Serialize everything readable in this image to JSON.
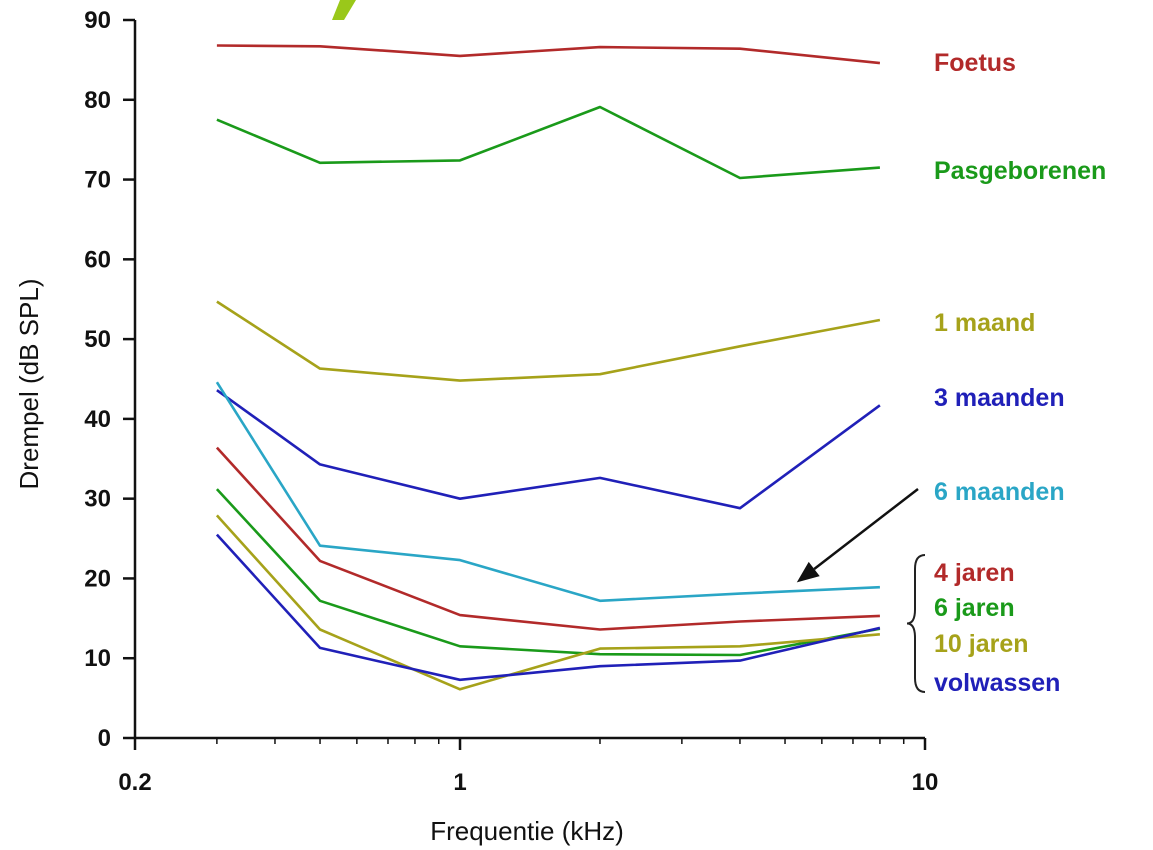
{
  "chart_data": {
    "type": "line",
    "title": "",
    "xlabel": "Frequentie (kHz)",
    "ylabel": "Drempel (dB SPL)",
    "x_scale": "log",
    "xlim": [
      0.2,
      10
    ],
    "ylim": [
      0,
      90
    ],
    "x_ticks": [
      0.2,
      1,
      10
    ],
    "x_tick_labels": [
      "0.2",
      "1",
      "10"
    ],
    "y_ticks": [
      0,
      10,
      20,
      30,
      40,
      50,
      60,
      70,
      80,
      90
    ],
    "y_tick_labels": [
      "0",
      "10",
      "20",
      "30",
      "40",
      "50",
      "60",
      "70",
      "80",
      "90"
    ],
    "grid": false,
    "legend": "labels placed at right of plot",
    "x": [
      0.3,
      0.5,
      1,
      2,
      4,
      8
    ],
    "series": [
      {
        "name": "Foetus",
        "color": "#b22a2a",
        "values": [
          null,
          null,
          null,
          null,
          null,
          null
        ],
        "points": [
          [
            0.3,
            86.8
          ],
          [
            0.5,
            86.7
          ],
          [
            1,
            85.5
          ],
          [
            2,
            86.6
          ],
          [
            4,
            86.4
          ],
          [
            8,
            84.6
          ]
        ]
      },
      {
        "name": "Pasgeborenen",
        "color": "#1a9a1a",
        "points": [
          [
            0.3,
            77.5
          ],
          [
            0.5,
            72.1
          ],
          [
            1,
            72.4
          ],
          [
            2,
            79.1
          ],
          [
            4,
            70.2
          ],
          [
            8,
            71.5
          ]
        ]
      },
      {
        "name": "1 maand",
        "color": "#a6a21a",
        "points": [
          [
            0.3,
            54.7
          ],
          [
            0.5,
            46.3
          ],
          [
            1,
            44.8
          ],
          [
            2,
            45.6
          ],
          [
            4,
            49.1
          ],
          [
            8,
            52.4
          ]
        ]
      },
      {
        "name": "3 maanden",
        "color": "#2020b8",
        "points": [
          [
            0.3,
            43.6
          ],
          [
            0.5,
            34.3
          ],
          [
            1,
            30.0
          ],
          [
            2,
            32.6
          ],
          [
            4,
            28.8
          ],
          [
            8,
            41.7
          ]
        ]
      },
      {
        "name": "6 maanden",
        "color": "#2aa6c6",
        "points": [
          [
            0.3,
            44.6
          ],
          [
            0.5,
            24.1
          ],
          [
            1,
            22.3
          ],
          [
            2,
            17.2
          ],
          [
            4,
            18.1
          ],
          [
            8,
            18.9
          ]
        ]
      },
      {
        "name": "4 jaren",
        "color": "#b22a2a",
        "points": [
          [
            0.3,
            36.4
          ],
          [
            0.5,
            22.2
          ],
          [
            1,
            15.4
          ],
          [
            2,
            13.6
          ],
          [
            4,
            14.6
          ],
          [
            8,
            15.3
          ]
        ]
      },
      {
        "name": "6 jaren",
        "color": "#1a9a1a",
        "points": [
          [
            0.3,
            31.2
          ],
          [
            0.5,
            17.2
          ],
          [
            1,
            11.5
          ],
          [
            2,
            10.5
          ],
          [
            4,
            10.4
          ],
          [
            8,
            13.7
          ]
        ]
      },
      {
        "name": "10 jaren",
        "color": "#a6a21a",
        "points": [
          [
            0.3,
            27.9
          ],
          [
            0.5,
            13.6
          ],
          [
            1,
            6.1
          ],
          [
            2,
            11.2
          ],
          [
            4,
            11.5
          ],
          [
            8,
            13.0
          ]
        ]
      },
      {
        "name": "volwassen",
        "color": "#2020b8",
        "points": [
          [
            0.3,
            25.5
          ],
          [
            0.5,
            11.3
          ],
          [
            1,
            7.3
          ],
          [
            2,
            9.0
          ],
          [
            4,
            9.7
          ],
          [
            8,
            13.8
          ]
        ]
      }
    ],
    "annotations": [
      {
        "type": "arrow",
        "from": [
          6.5,
          31.5
        ],
        "to": [
          5.3,
          19.5
        ],
        "points_to": "6 maanden"
      },
      {
        "type": "brace",
        "groups": [
          "4 jaren",
          "6 jaren",
          "10 jaren",
          "volwassen"
        ]
      }
    ]
  }
}
